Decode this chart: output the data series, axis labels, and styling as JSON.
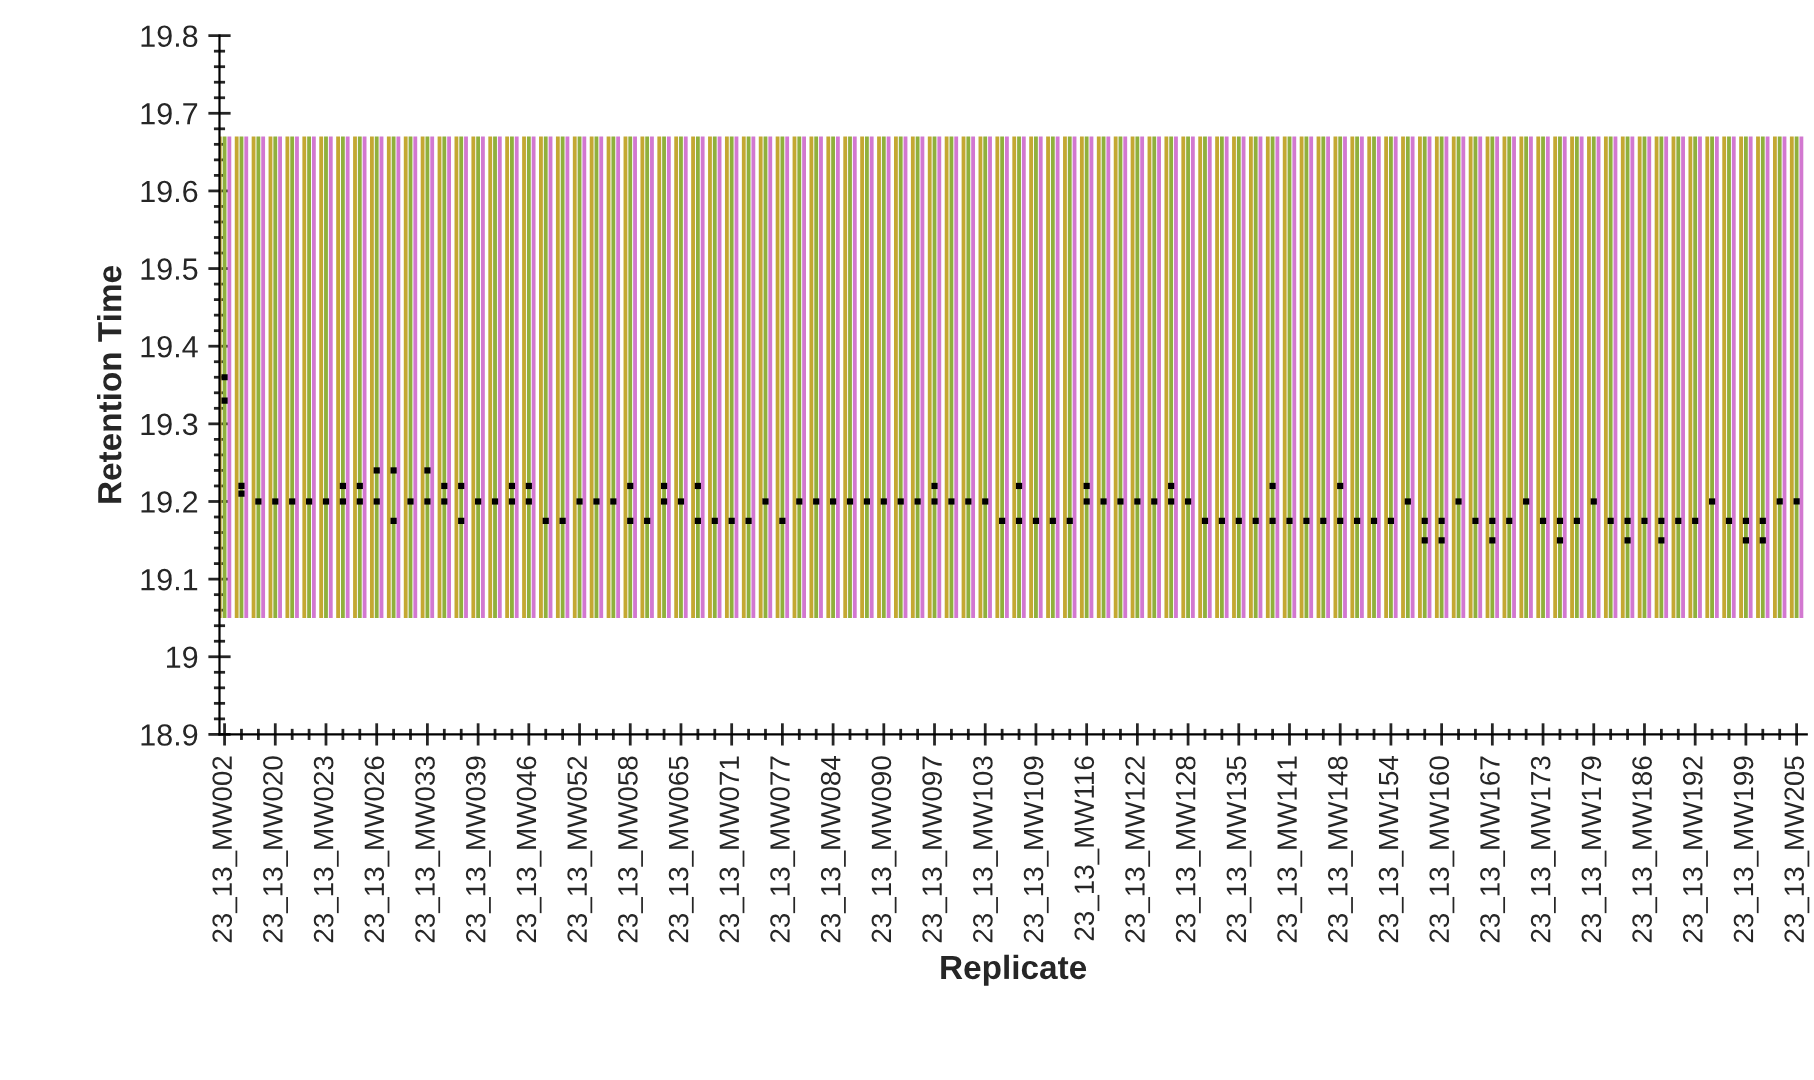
{
  "chart_data": {
    "type": "bar",
    "xlabel": "Replicate",
    "ylabel": "Retention Time",
    "categories": [
      "23_13_MW002",
      null,
      null,
      "23_13_MW020",
      null,
      null,
      "23_13_MW023",
      null,
      null,
      "23_13_MW026",
      null,
      null,
      "23_13_MW033",
      null,
      null,
      "23_13_MW039",
      null,
      null,
      "23_13_MW046",
      null,
      null,
      "23_13_MW052",
      null,
      null,
      "23_13_MW058",
      null,
      null,
      "23_13_MW065",
      null,
      null,
      "23_13_MW071",
      null,
      null,
      "23_13_MW077",
      null,
      null,
      "23_13_MW084",
      null,
      null,
      "23_13_MW090",
      null,
      null,
      "23_13_MW097",
      null,
      null,
      "23_13_MW103",
      null,
      null,
      "23_13_MW109",
      null,
      null,
      "23_13_MW116",
      null,
      null,
      "23_13_MW122",
      null,
      null,
      "23_13_MW128",
      null,
      null,
      "23_13_MW135",
      null,
      null,
      "23_13_MW141",
      null,
      null,
      "23_13_MW148",
      null,
      null,
      "23_13_MW154",
      null,
      null,
      "23_13_MW160",
      null,
      null,
      "23_13_MW167",
      null,
      null,
      "23_13_MW173",
      null,
      null,
      "23_13_MW179",
      null,
      null,
      "23_13_MW186",
      null,
      null,
      "23_13_MW192",
      null,
      null,
      "23_13_MW199",
      null,
      null,
      "23_13_MW205"
    ],
    "series": [
      {
        "color": "#c4a832",
        "base": [
          19.05,
          19.05,
          19.05,
          19.05,
          19.05,
          19.05,
          19.05,
          19.05,
          19.05,
          19.05,
          19.05,
          19.05,
          19.05,
          19.05,
          19.05,
          19.05,
          19.05,
          19.05,
          19.05,
          19.05,
          19.05,
          19.05,
          19.05,
          19.05,
          19.05,
          19.05,
          19.05,
          19.05,
          19.05,
          19.05,
          19.05,
          19.05,
          19.05,
          19.05,
          19.05,
          19.05,
          19.05,
          19.05,
          19.05,
          19.05,
          19.05,
          19.05,
          19.05,
          19.05,
          19.05,
          19.05,
          19.05,
          19.05,
          19.05,
          19.05,
          19.05,
          19.05,
          19.05,
          19.05,
          19.05,
          19.05,
          19.05,
          19.05,
          19.05,
          19.05,
          19.05,
          19.05,
          19.05,
          19.05,
          19.05,
          19.05,
          19.05,
          19.05,
          19.05,
          19.05,
          19.05,
          19.05,
          19.05,
          19.05,
          19.05,
          19.05,
          19.05,
          19.05,
          19.05,
          19.05,
          19.05,
          19.05,
          19.05,
          19.05,
          19.05,
          19.05,
          19.05,
          19.05,
          19.05,
          19.05,
          19.05,
          19.05,
          19.05,
          19.05
        ],
        "values": [
          0.62,
          0.62,
          0.62,
          0.62,
          0.62,
          0.62,
          0.62,
          0.62,
          0.62,
          0.62,
          0.62,
          0.62,
          0.62,
          0.62,
          0.62,
          0.62,
          0.62,
          0.62,
          0.62,
          0.62,
          0.62,
          0.62,
          0.62,
          0.62,
          0.62,
          0.62,
          0.62,
          0.62,
          0.62,
          0.62,
          0.62,
          0.62,
          0.62,
          0.62,
          0.62,
          0.62,
          0.62,
          0.62,
          0.62,
          0.62,
          0.62,
          0.62,
          0.62,
          0.62,
          0.62,
          0.62,
          0.62,
          0.62,
          0.62,
          0.62,
          0.62,
          0.62,
          0.62,
          0.62,
          0.62,
          0.62,
          0.62,
          0.62,
          0.62,
          0.62,
          0.62,
          0.62,
          0.62,
          0.62,
          0.62,
          0.62,
          0.62,
          0.62,
          0.62,
          0.62,
          0.62,
          0.62,
          0.62,
          0.62,
          0.62,
          0.62,
          0.62,
          0.62,
          0.62,
          0.62,
          0.62,
          0.62,
          0.62,
          0.62,
          0.62,
          0.62,
          0.62,
          0.62,
          0.62,
          0.62,
          0.62,
          0.62,
          0.62,
          0.62
        ]
      },
      {
        "color": "#90b03c",
        "base": [
          19.05,
          19.05,
          19.05,
          19.05,
          19.05,
          19.05,
          19.05,
          19.05,
          19.05,
          19.05,
          19.05,
          19.05,
          19.05,
          19.05,
          19.05,
          19.05,
          19.05,
          19.05,
          19.05,
          19.05,
          19.05,
          19.05,
          19.05,
          19.05,
          19.05,
          19.05,
          19.05,
          19.05,
          19.05,
          19.05,
          19.05,
          19.05,
          19.05,
          19.05,
          19.05,
          19.05,
          19.05,
          19.05,
          19.05,
          19.05,
          19.05,
          19.05,
          19.05,
          19.05,
          19.05,
          19.05,
          19.05,
          19.05,
          19.05,
          19.05,
          19.05,
          19.05,
          19.05,
          19.05,
          19.05,
          19.05,
          19.05,
          19.05,
          19.05,
          19.05,
          19.05,
          19.05,
          19.05,
          19.05,
          19.05,
          19.05,
          19.05,
          19.05,
          19.05,
          19.05,
          19.05,
          19.05,
          19.05,
          19.05,
          19.05,
          19.05,
          19.05,
          19.05,
          19.05,
          19.05,
          19.05,
          19.05,
          19.05,
          19.05,
          19.05,
          19.05,
          19.05,
          19.05,
          19.05,
          19.05,
          19.05,
          19.05,
          19.05,
          19.05
        ],
        "values": [
          0.62,
          0.62,
          0.62,
          0.62,
          0.62,
          0.62,
          0.62,
          0.62,
          0.62,
          0.62,
          0.62,
          0.62,
          0.62,
          0.62,
          0.62,
          0.62,
          0.62,
          0.62,
          0.62,
          0.62,
          0.62,
          0.62,
          0.62,
          0.62,
          0.62,
          0.62,
          0.62,
          0.62,
          0.62,
          0.62,
          0.62,
          0.62,
          0.62,
          0.62,
          0.62,
          0.62,
          0.62,
          0.62,
          0.62,
          0.62,
          0.62,
          0.62,
          0.62,
          0.62,
          0.62,
          0.62,
          0.62,
          0.62,
          0.62,
          0.62,
          0.62,
          0.62,
          0.62,
          0.62,
          0.62,
          0.62,
          0.62,
          0.62,
          0.62,
          0.62,
          0.62,
          0.62,
          0.62,
          0.62,
          0.62,
          0.62,
          0.62,
          0.62,
          0.62,
          0.62,
          0.62,
          0.62,
          0.62,
          0.62,
          0.62,
          0.62,
          0.62,
          0.62,
          0.62,
          0.62,
          0.62,
          0.62,
          0.62,
          0.62,
          0.62,
          0.62,
          0.62,
          0.62,
          0.62,
          0.62,
          0.62,
          0.62,
          0.62,
          0.62
        ]
      },
      {
        "color": "#d278d0",
        "base": [
          19.05,
          19.05,
          19.05,
          19.05,
          19.05,
          19.05,
          19.05,
          19.05,
          19.05,
          19.05,
          19.05,
          19.05,
          19.05,
          19.05,
          19.05,
          19.05,
          19.05,
          19.05,
          19.05,
          19.05,
          19.05,
          19.05,
          19.05,
          19.05,
          19.05,
          19.05,
          19.05,
          19.05,
          19.05,
          19.05,
          19.05,
          19.05,
          19.05,
          19.05,
          19.05,
          19.05,
          19.05,
          19.05,
          19.05,
          19.05,
          19.05,
          19.05,
          19.05,
          19.05,
          19.05,
          19.05,
          19.05,
          19.05,
          19.05,
          19.05,
          19.05,
          19.05,
          19.05,
          19.05,
          19.05,
          19.05,
          19.05,
          19.05,
          19.05,
          19.05,
          19.05,
          19.05,
          19.05,
          19.05,
          19.05,
          19.05,
          19.05,
          19.05,
          19.05,
          19.05,
          19.05,
          19.05,
          19.05,
          19.05,
          19.05,
          19.05,
          19.05,
          19.05,
          19.05,
          19.05,
          19.05,
          19.05,
          19.05,
          19.05,
          19.05,
          19.05,
          19.05,
          19.05,
          19.05,
          19.05,
          19.05,
          19.05,
          19.05,
          19.05
        ],
        "values": [
          0.62,
          0.62,
          0.62,
          0.62,
          0.62,
          0.62,
          0.62,
          0.62,
          0.62,
          0.62,
          0.62,
          0.62,
          0.62,
          0.62,
          0.62,
          0.62,
          0.62,
          0.62,
          0.62,
          0.62,
          0.62,
          0.62,
          0.62,
          0.62,
          0.62,
          0.62,
          0.62,
          0.62,
          0.62,
          0.62,
          0.62,
          0.62,
          0.62,
          0.62,
          0.62,
          0.62,
          0.62,
          0.62,
          0.62,
          0.62,
          0.62,
          0.62,
          0.62,
          0.62,
          0.62,
          0.62,
          0.62,
          0.62,
          0.62,
          0.62,
          0.62,
          0.62,
          0.62,
          0.62,
          0.62,
          0.62,
          0.62,
          0.62,
          0.62,
          0.62,
          0.62,
          0.62,
          0.62,
          0.62,
          0.62,
          0.62,
          0.62,
          0.62,
          0.62,
          0.62,
          0.62,
          0.62,
          0.62,
          0.62,
          0.62,
          0.62,
          0.62,
          0.62,
          0.62,
          0.62,
          0.62,
          0.62,
          0.62,
          0.62,
          0.62,
          0.62,
          0.62,
          0.62,
          0.62,
          0.62,
          0.62,
          0.62,
          0.62,
          0.62
        ]
      },
      {
        "type": "scatter",
        "color": "#000000",
        "values": [
          19.36,
          19.21,
          19.2,
          19.2,
          19.2,
          19.2,
          19.2,
          19.2,
          19.2,
          19.2,
          19.175,
          19.2,
          19.2,
          19.2,
          19.175,
          19.2,
          19.2,
          19.2,
          19.2,
          19.175,
          19.175,
          19.2,
          19.2,
          19.2,
          19.175,
          19.175,
          19.2,
          19.2,
          19.175,
          19.175,
          19.175,
          19.175,
          19.2,
          19.175,
          19.2,
          19.2,
          19.2,
          19.2,
          19.2,
          19.2,
          19.2,
          19.2,
          19.2,
          19.2,
          19.2,
          19.2,
          19.175,
          19.175,
          19.175,
          19.175,
          19.175,
          19.2,
          19.2,
          19.2,
          19.2,
          19.2,
          19.2,
          19.2,
          19.175,
          19.175,
          19.175,
          19.175,
          19.175,
          19.175,
          19.175,
          19.175,
          19.175,
          19.175,
          19.175,
          19.175,
          19.2,
          19.175,
          19.175,
          19.2,
          19.175,
          19.175,
          19.175,
          19.2,
          19.175,
          19.175,
          19.175,
          19.2,
          19.175,
          19.175,
          19.175,
          19.175,
          19.175,
          19.175,
          19.2,
          19.175,
          19.175,
          19.175,
          19.2,
          19.2
        ]
      },
      {
        "type": "scatter",
        "color": "#000000",
        "values": [
          19.33,
          19.22,
          null,
          null,
          null,
          null,
          null,
          19.22,
          19.22,
          19.24,
          19.24,
          null,
          19.24,
          19.22,
          19.22,
          null,
          null,
          19.22,
          19.22,
          null,
          null,
          null,
          null,
          null,
          19.22,
          null,
          19.22,
          null,
          19.22,
          null,
          null,
          null,
          null,
          null,
          null,
          null,
          null,
          null,
          null,
          null,
          null,
          null,
          19.22,
          null,
          null,
          null,
          null,
          19.22,
          null,
          null,
          null,
          19.22,
          null,
          null,
          null,
          null,
          19.22,
          null,
          null,
          null,
          null,
          null,
          19.22,
          null,
          null,
          null,
          19.22,
          null,
          null,
          null,
          null,
          19.15,
          19.15,
          null,
          null,
          19.15,
          null,
          null,
          null,
          19.15,
          null,
          null,
          null,
          19.15,
          null,
          19.15,
          null,
          null,
          null,
          null,
          19.15,
          19.15,
          null,
          null
        ]
      }
    ],
    "ylim": [
      18.9,
      19.8
    ],
    "yticks": [
      18.9,
      19,
      19.1,
      19.2,
      19.3,
      19.4,
      19.5,
      19.6,
      19.7,
      19.8
    ],
    "grid": false,
    "legend": false,
    "marker": "square"
  }
}
